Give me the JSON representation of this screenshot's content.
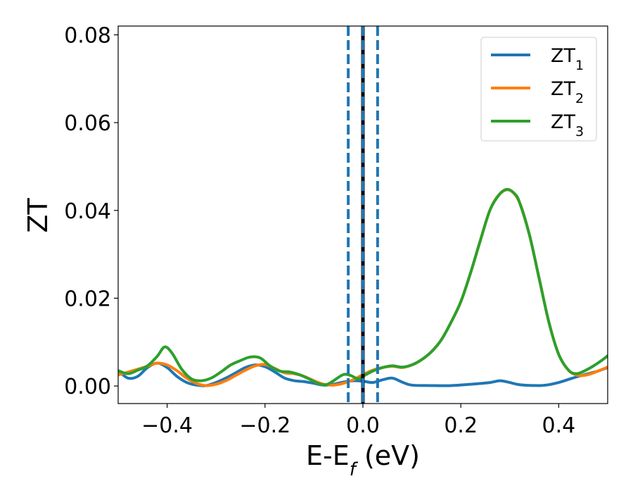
{
  "chart_data": {
    "type": "line",
    "xlabel": "E-E",
    "xlabel_sub": "f",
    "xlabel_unit": " (eV)",
    "ylabel": "ZT",
    "xlim": [
      -0.5,
      0.5
    ],
    "ylim": [
      -0.004,
      0.082
    ],
    "xticks": [
      -0.4,
      -0.2,
      0.0,
      0.2,
      0.4
    ],
    "xtick_labels": [
      "−0.4",
      "−0.2",
      "0.0",
      "0.2",
      "0.4"
    ],
    "yticks": [
      0.0,
      0.02,
      0.04,
      0.06,
      0.08
    ],
    "ytick_labels": [
      "0.00",
      "0.02",
      "0.04",
      "0.06",
      "0.08"
    ],
    "legend_position": "top-right",
    "vlines": [
      {
        "x": 0.0,
        "style": "solid",
        "color": "#000000"
      },
      {
        "x": -0.03,
        "style": "dashed",
        "color": "#1f77b4"
      },
      {
        "x": 0.0,
        "style": "dashed",
        "color": "#1f77b4"
      },
      {
        "x": 0.03,
        "style": "dashed",
        "color": "#1f77b4"
      }
    ],
    "series": [
      {
        "name": "ZT",
        "name_sub": "1",
        "color": "#1f77b4",
        "points": [
          [
            -0.5,
            0.0035
          ],
          [
            -0.48,
            0.0018
          ],
          [
            -0.46,
            0.0022
          ],
          [
            -0.44,
            0.0042
          ],
          [
            -0.42,
            0.0052
          ],
          [
            -0.4,
            0.0042
          ],
          [
            -0.38,
            0.0022
          ],
          [
            -0.36,
            0.0008
          ],
          [
            -0.34,
            0.0002
          ],
          [
            -0.32,
            0.0001
          ],
          [
            -0.3,
            0.0008
          ],
          [
            -0.28,
            0.0018
          ],
          [
            -0.26,
            0.003
          ],
          [
            -0.24,
            0.0042
          ],
          [
            -0.22,
            0.0048
          ],
          [
            -0.2,
            0.0044
          ],
          [
            -0.18,
            0.0032
          ],
          [
            -0.16,
            0.0018
          ],
          [
            -0.14,
            0.0012
          ],
          [
            -0.12,
            0.001
          ],
          [
            -0.1,
            0.0006
          ],
          [
            -0.08,
            0.0002
          ],
          [
            -0.06,
            0.0004
          ],
          [
            -0.04,
            0.0009
          ],
          [
            -0.02,
            0.0012
          ],
          [
            0.0,
            0.0011
          ],
          [
            0.02,
            0.0008
          ],
          [
            0.04,
            0.0014
          ],
          [
            0.06,
            0.0018
          ],
          [
            0.08,
            0.0009
          ],
          [
            0.1,
            0.0002
          ],
          [
            0.14,
            0.0001
          ],
          [
            0.18,
            0.0001
          ],
          [
            0.22,
            0.0004
          ],
          [
            0.26,
            0.0008
          ],
          [
            0.28,
            0.0012
          ],
          [
            0.3,
            0.0008
          ],
          [
            0.32,
            0.0003
          ],
          [
            0.36,
            0.0001
          ],
          [
            0.38,
            0.0003
          ],
          [
            0.4,
            0.0008
          ],
          [
            0.42,
            0.0015
          ],
          [
            0.44,
            0.0022
          ],
          [
            0.46,
            0.0028
          ],
          [
            0.48,
            0.0034
          ],
          [
            0.5,
            0.0042
          ]
        ]
      },
      {
        "name": "ZT",
        "name_sub": "2",
        "color": "#ff7f0e",
        "points": [
          [
            -0.5,
            0.0025
          ],
          [
            -0.47,
            0.0035
          ],
          [
            -0.44,
            0.0045
          ],
          [
            -0.42,
            0.0052
          ],
          [
            -0.4,
            0.0048
          ],
          [
            -0.38,
            0.0035
          ],
          [
            -0.36,
            0.0018
          ],
          [
            -0.34,
            0.0006
          ],
          [
            -0.32,
            0.0001
          ],
          [
            -0.3,
            0.0004
          ],
          [
            -0.28,
            0.0012
          ],
          [
            -0.26,
            0.0024
          ],
          [
            -0.24,
            0.0036
          ],
          [
            -0.22,
            0.0046
          ],
          [
            -0.2,
            0.0049
          ],
          [
            -0.18,
            0.004
          ],
          [
            -0.16,
            0.003
          ],
          [
            -0.14,
            0.0028
          ],
          [
            -0.12,
            0.0022
          ],
          [
            -0.1,
            0.0012
          ],
          [
            -0.08,
            0.0004
          ],
          [
            -0.06,
            0.0002
          ],
          [
            -0.04,
            0.0006
          ],
          [
            -0.02,
            0.0014
          ],
          [
            0.0,
            0.0026
          ],
          [
            0.02,
            0.0036
          ],
          [
            0.04,
            0.0042
          ],
          [
            0.06,
            0.0045
          ],
          [
            0.08,
            0.0042
          ],
          [
            0.1,
            0.0048
          ],
          [
            0.12,
            0.006
          ],
          [
            0.14,
            0.0078
          ],
          [
            0.16,
            0.0105
          ],
          [
            0.18,
            0.0145
          ],
          [
            0.2,
            0.0192
          ],
          [
            0.22,
            0.0258
          ],
          [
            0.24,
            0.0332
          ],
          [
            0.26,
            0.0402
          ],
          [
            0.28,
            0.0438
          ],
          [
            0.3,
            0.0446
          ],
          [
            0.32,
            0.0418
          ],
          [
            0.34,
            0.0345
          ],
          [
            0.36,
            0.0245
          ],
          [
            0.38,
            0.0145
          ],
          [
            0.4,
            0.0072
          ],
          [
            0.42,
            0.0036
          ],
          [
            0.44,
            0.0024
          ],
          [
            0.46,
            0.0026
          ],
          [
            0.48,
            0.0034
          ],
          [
            0.5,
            0.0043
          ]
        ]
      },
      {
        "name": "ZT",
        "name_sub": "3",
        "color": "#2ca02c",
        "points": [
          [
            -0.5,
            0.0035
          ],
          [
            -0.48,
            0.0028
          ],
          [
            -0.46,
            0.0036
          ],
          [
            -0.44,
            0.0046
          ],
          [
            -0.42,
            0.0068
          ],
          [
            -0.405,
            0.0089
          ],
          [
            -0.39,
            0.0075
          ],
          [
            -0.37,
            0.0038
          ],
          [
            -0.35,
            0.0016
          ],
          [
            -0.33,
            0.0012
          ],
          [
            -0.31,
            0.0018
          ],
          [
            -0.29,
            0.0032
          ],
          [
            -0.27,
            0.0048
          ],
          [
            -0.25,
            0.0058
          ],
          [
            -0.23,
            0.0066
          ],
          [
            -0.21,
            0.0064
          ],
          [
            -0.19,
            0.0046
          ],
          [
            -0.17,
            0.0034
          ],
          [
            -0.15,
            0.0032
          ],
          [
            -0.13,
            0.0026
          ],
          [
            -0.11,
            0.0016
          ],
          [
            -0.09,
            0.0005
          ],
          [
            -0.075,
            0.0003
          ],
          [
            -0.06,
            0.0012
          ],
          [
            -0.04,
            0.0026
          ],
          [
            -0.025,
            0.0024
          ],
          [
            -0.01,
            0.0016
          ],
          [
            0.0,
            0.0022
          ],
          [
            0.02,
            0.0034
          ],
          [
            0.04,
            0.0042
          ],
          [
            0.06,
            0.0046
          ],
          [
            0.08,
            0.0043
          ],
          [
            0.1,
            0.0048
          ],
          [
            0.12,
            0.006
          ],
          [
            0.14,
            0.0078
          ],
          [
            0.16,
            0.0105
          ],
          [
            0.18,
            0.0145
          ],
          [
            0.2,
            0.0192
          ],
          [
            0.22,
            0.0258
          ],
          [
            0.24,
            0.0332
          ],
          [
            0.26,
            0.0402
          ],
          [
            0.28,
            0.0438
          ],
          [
            0.295,
            0.0448
          ],
          [
            0.31,
            0.0438
          ],
          [
            0.32,
            0.0418
          ],
          [
            0.34,
            0.0345
          ],
          [
            0.36,
            0.0245
          ],
          [
            0.38,
            0.0145
          ],
          [
            0.4,
            0.0072
          ],
          [
            0.42,
            0.0036
          ],
          [
            0.435,
            0.0028
          ],
          [
            0.45,
            0.0033
          ],
          [
            0.47,
            0.0045
          ],
          [
            0.49,
            0.006
          ],
          [
            0.5,
            0.0069
          ]
        ]
      }
    ]
  }
}
